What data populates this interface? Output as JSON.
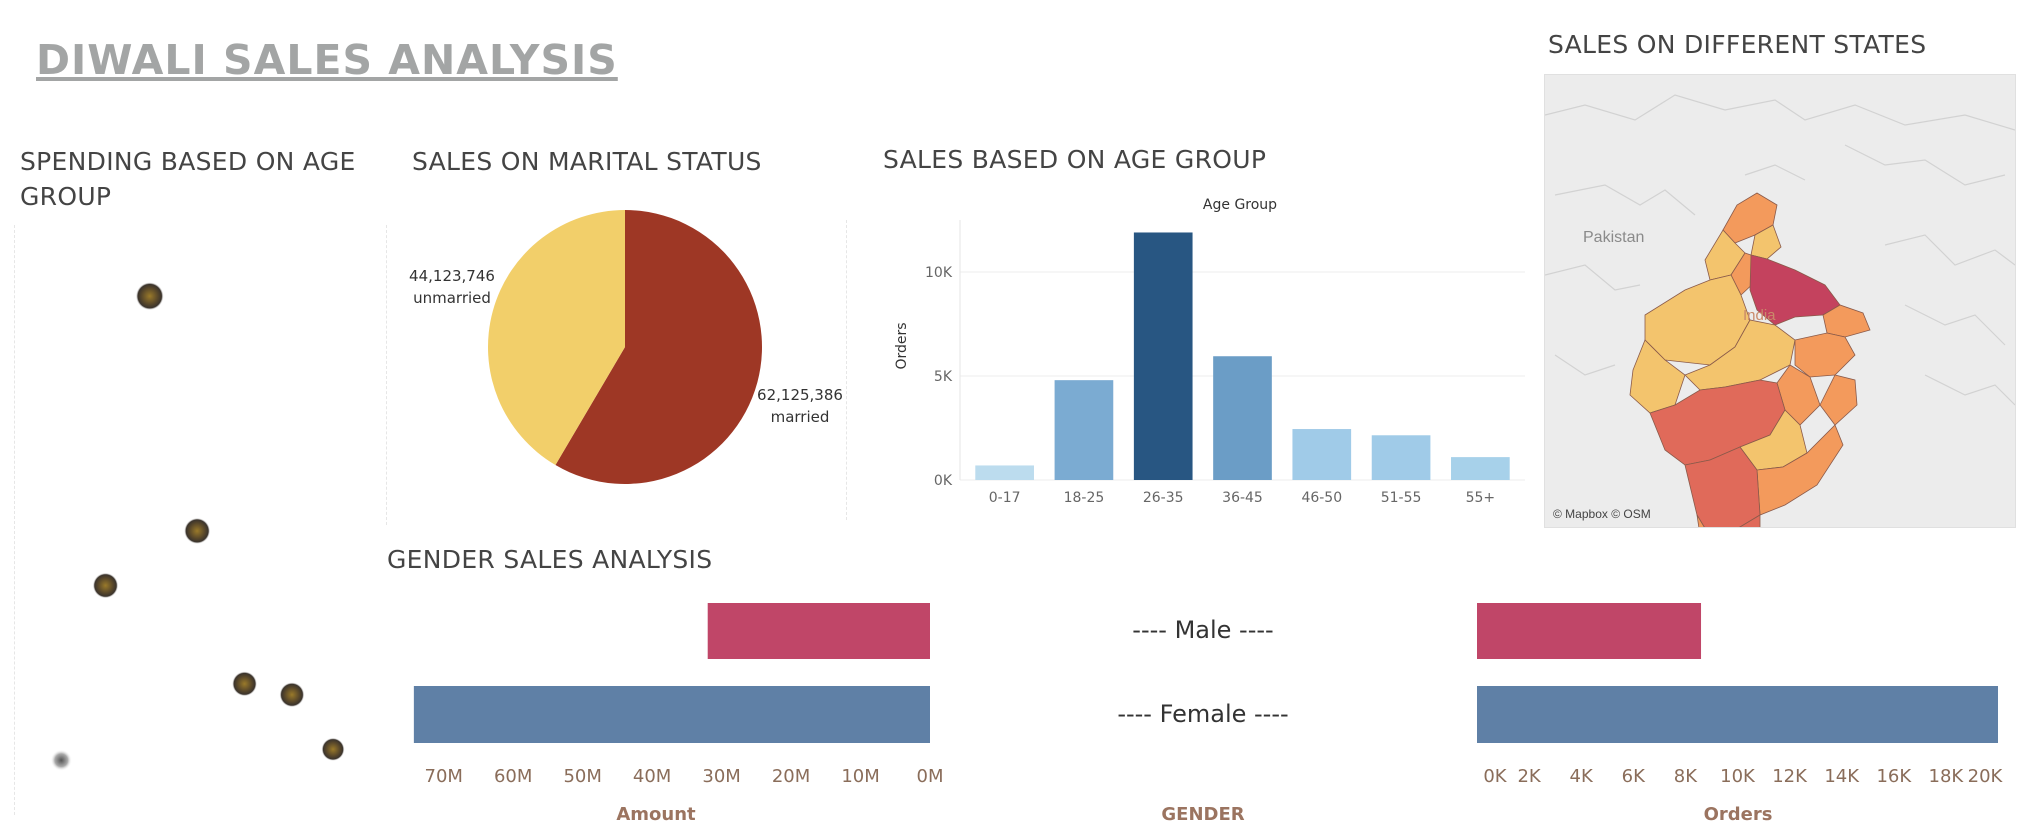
{
  "header": {
    "title": "DIWALI SALES ANALYSIS"
  },
  "sections": {
    "spending_age": {
      "title_line1": "SPENDING BASED ON AGE",
      "title_line2": "GROUP"
    },
    "marital": {
      "title": "SALES ON MARITAL STATUS"
    },
    "age_group": {
      "title": "SALES BASED ON AGE GROUP"
    },
    "states": {
      "title": "SALES ON DIFFERENT STATES"
    },
    "gender": {
      "title": "GENDER SALES ANALYSIS"
    }
  },
  "map": {
    "attribution": "© Mapbox © OSM",
    "labels": {
      "pakistan": "Pakistan",
      "india": "India"
    },
    "colors": {
      "high": "#c4425e",
      "mid_high": "#e06a5a",
      "mid": "#f39a5c",
      "low": "#f3c46d",
      "base": "#ececec"
    }
  },
  "chart_data": [
    {
      "type": "scatter",
      "title": "SPENDING BASED ON AGE GROUP",
      "points": [
        {
          "x": 0.36,
          "y": 0.91,
          "size": 1.0
        },
        {
          "x": 0.51,
          "y": 0.48,
          "size": 0.85
        },
        {
          "x": 0.22,
          "y": 0.38,
          "size": 0.8
        },
        {
          "x": 0.66,
          "y": 0.2,
          "size": 0.75
        },
        {
          "x": 0.81,
          "y": 0.18,
          "size": 0.75
        },
        {
          "x": 0.94,
          "y": 0.08,
          "size": 0.6
        },
        {
          "x": 0.08,
          "y": 0.06,
          "size": 0.45
        }
      ]
    },
    {
      "type": "pie",
      "title": "SALES ON MARITAL STATUS",
      "slices": [
        {
          "label": "married",
          "value": 62125386,
          "value_text": "62,125,386",
          "color": "#9e3725"
        },
        {
          "label": "unmarried",
          "value": 44123746,
          "value_text": "44,123,746",
          "color": "#f2cf6a"
        }
      ]
    },
    {
      "type": "bar",
      "title": "SALES BASED ON AGE GROUP",
      "header": "Age Group",
      "ylabel": "Orders",
      "categories": [
        "0-17",
        "18-25",
        "26-35",
        "36-45",
        "46-50",
        "51-55",
        "55+"
      ],
      "values": [
        700,
        4800,
        11900,
        5950,
        2450,
        2150,
        1100
      ],
      "colors": [
        "#bcdcee",
        "#7babd2",
        "#285682",
        "#6b9dc6",
        "#a0cbe8",
        "#a0cbe8",
        "#a7d1ea"
      ],
      "yticks": [
        {
          "value": 0,
          "label": "0K"
        },
        {
          "value": 5000,
          "label": "5K"
        },
        {
          "value": 10000,
          "label": "10K"
        }
      ],
      "ylim": [
        0,
        12500
      ],
      "grid": true
    },
    {
      "type": "bar",
      "orientation": "horizontal",
      "title": "GENDER SALES ANALYSIS",
      "categories": [
        "Male",
        "Female"
      ],
      "category_labels": [
        "---- Male ----",
        "---- Female ----"
      ],
      "axis_title_center": "GENDER",
      "series": [
        {
          "name": "Amount",
          "values": [
            32000000,
            74300000
          ],
          "xlim": [
            0,
            75000000
          ],
          "ticks": [
            "70M",
            "60M",
            "50M",
            "40M",
            "30M",
            "20M",
            "10M",
            "0M"
          ],
          "direction": "right-to-left"
        },
        {
          "name": "Orders",
          "values": [
            8600,
            20000
          ],
          "xlim": [
            0,
            20000
          ],
          "ticks": [
            "0K",
            "2K",
            "4K",
            "6K",
            "8K",
            "10K",
            "12K",
            "14K",
            "16K",
            "18K",
            "20K"
          ],
          "direction": "left-to-right"
        }
      ],
      "colors": {
        "Male": "#c04668",
        "Female": "#5f80a6"
      }
    }
  ]
}
